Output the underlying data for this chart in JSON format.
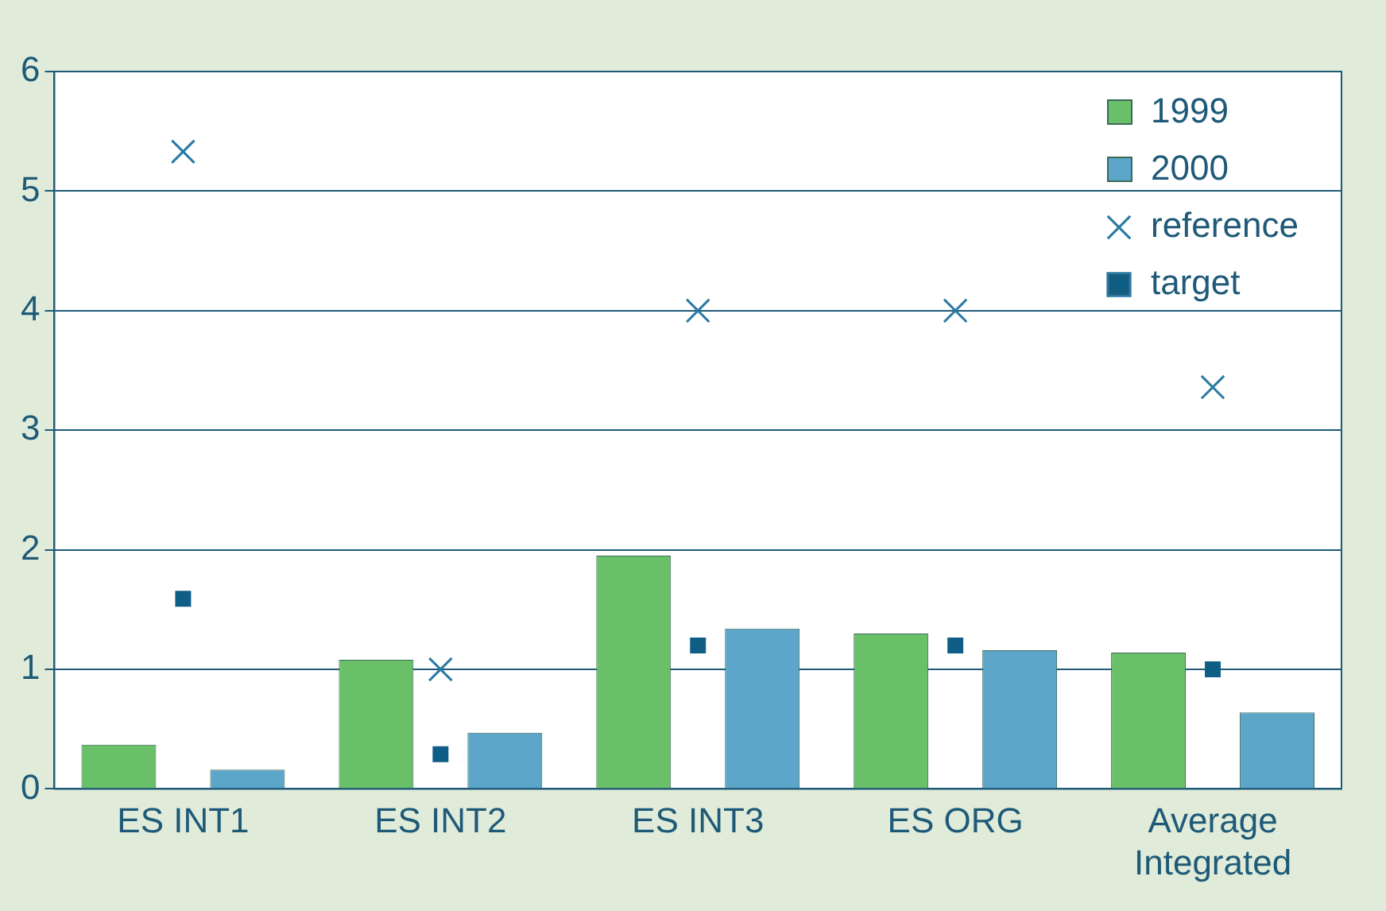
{
  "chart_data": {
    "type": "bar",
    "categories": [
      "ES INT1",
      "ES INT2",
      "ES INT3",
      "ES ORG",
      "Average Integrated"
    ],
    "series": [
      {
        "name": "1999",
        "color": "#6abf69",
        "values": [
          0.37,
          1.08,
          1.95,
          1.3,
          1.14
        ]
      },
      {
        "name": "2000",
        "color": "#5ba6c9",
        "values": [
          0.16,
          0.47,
          1.34,
          1.16,
          0.64
        ]
      },
      {
        "name": "reference",
        "type": "scatter",
        "marker": "cross",
        "color": "#2a7aa4",
        "values": [
          5.33,
          1.0,
          4.0,
          4.0,
          3.36
        ]
      },
      {
        "name": "target",
        "type": "scatter",
        "marker": "square",
        "color": "#0e5e86",
        "values": [
          1.59,
          0.29,
          1.2,
          1.2,
          1.0
        ]
      }
    ],
    "ylim": [
      0,
      6
    ],
    "yticks": [
      0,
      1,
      2,
      3,
      4,
      5,
      6
    ],
    "grid": "y",
    "legend": "top right"
  }
}
